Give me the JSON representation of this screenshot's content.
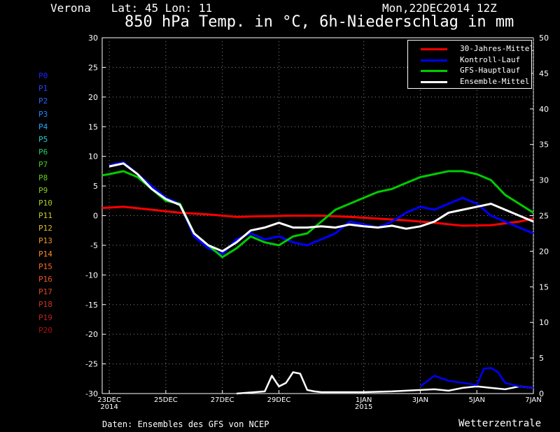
{
  "header": {
    "location": "Verona   Lat: 45 Lon: 11",
    "datetime": "Mon,22DEC2014 12Z",
    "title": "850 hPa Temp. in °C, 6h-Niederschlag in mm"
  },
  "footer": {
    "credit": "Daten: Ensembles des GFS von NCEP",
    "brand": "Wetterzentrale"
  },
  "members": [
    {
      "label": "P0",
      "color": "#2222ff"
    },
    {
      "label": "P1",
      "color": "#2244ff"
    },
    {
      "label": "P2",
      "color": "#2266ff"
    },
    {
      "label": "P3",
      "color": "#2288ff"
    },
    {
      "label": "P4",
      "color": "#22aaff"
    },
    {
      "label": "P5",
      "color": "#22cccc"
    },
    {
      "label": "P6",
      "color": "#22cc66"
    },
    {
      "label": "P7",
      "color": "#44cc22"
    },
    {
      "label": "P8",
      "color": "#66cc22"
    },
    {
      "label": "P9",
      "color": "#88cc22"
    },
    {
      "label": "P10",
      "color": "#aacc22"
    },
    {
      "label": "P11",
      "color": "#cccc22"
    },
    {
      "label": "P12",
      "color": "#ddbb22"
    },
    {
      "label": "P13",
      "color": "#ee9922"
    },
    {
      "label": "P14",
      "color": "#ff8822"
    },
    {
      "label": "P15",
      "color": "#ff6622"
    },
    {
      "label": "P16",
      "color": "#ee5522"
    },
    {
      "label": "P17",
      "color": "#dd4422"
    },
    {
      "label": "P18",
      "color": "#cc3322"
    },
    {
      "label": "P19",
      "color": "#bb2222"
    },
    {
      "label": "P20",
      "color": "#aa1111"
    }
  ],
  "legend": [
    {
      "label": "30-Jahres-Mittel",
      "color": "#ff0000"
    },
    {
      "label": "Kontroll-Lauf",
      "color": "#0000ff"
    },
    {
      "label": "GFS-Hauptlauf",
      "color": "#00cc00"
    },
    {
      "label": "Ensemble-Mittel",
      "color": "#ffffff"
    }
  ],
  "chart_data": {
    "type": "line",
    "title": "850 hPa Temp. in °C, 6h-Niederschlag in mm",
    "x_tick_labels": [
      {
        "label": "23DEC",
        "day": 1
      },
      {
        "label": "2014",
        "day": 1
      },
      {
        "label": "25DEC",
        "day": 3
      },
      {
        "label": "27DEC",
        "day": 5
      },
      {
        "label": "29DEC",
        "day": 7
      },
      {
        "label": "1JAN",
        "day": 10
      },
      {
        "label": "2015",
        "day": 10
      },
      {
        "label": "3JAN",
        "day": 12
      },
      {
        "label": "5JAN",
        "day": 14
      },
      {
        "label": "7JAN",
        "day": 16
      }
    ],
    "xlim_days": [
      0.75,
      16
    ],
    "y_left": {
      "ylim": [
        -30,
        30
      ],
      "ticks": [
        30,
        25,
        20,
        15,
        10,
        5,
        0,
        -5,
        -10,
        -15,
        -20,
        -25,
        -30
      ]
    },
    "y_right": {
      "ylim": [
        0,
        50
      ],
      "ticks": [
        50,
        45,
        40,
        35,
        30,
        25,
        20,
        15,
        10,
        5,
        0
      ]
    },
    "grid": true,
    "legend_position": "top-right",
    "temperature_series": [
      {
        "name": "30-Jahres-Mittel",
        "color": "#ff0000",
        "x": [
          0.75,
          1.5,
          2.5,
          3.5,
          4.5,
          5.5,
          6.5,
          7.5,
          8.5,
          9.5,
          10.5,
          11.5,
          12.5,
          13.5,
          14.5,
          15.5,
          16
        ],
        "y": [
          1.3,
          1.5,
          1.0,
          0.5,
          0.2,
          -0.2,
          -0.1,
          0.0,
          0.0,
          -0.2,
          -0.5,
          -0.8,
          -1.2,
          -1.7,
          -1.6,
          -1.0,
          -0.5
        ]
      },
      {
        "name": "Kontroll-Lauf",
        "color": "#0000ff",
        "x": [
          1,
          1.5,
          2,
          2.5,
          3,
          3.5,
          4,
          4.5,
          5,
          5.5,
          6,
          6.5,
          7,
          7.5,
          8,
          8.5,
          9,
          9.5,
          10,
          10.5,
          11,
          11.5,
          12,
          12.5,
          13,
          13.5,
          14,
          14.5,
          15,
          15.5,
          16
        ],
        "y": [
          8.5,
          9.0,
          7.0,
          5.0,
          3.0,
          2.0,
          -3.5,
          -5.5,
          -6.5,
          -4.0,
          -3.0,
          -4.0,
          -3.5,
          -4.5,
          -5.0,
          -4.0,
          -3.0,
          -1.0,
          -1.5,
          -2.0,
          -1.0,
          0.5,
          1.5,
          1.0,
          2.0,
          3.0,
          2.0,
          0.0,
          -1.0,
          -2.0,
          -3.0
        ]
      },
      {
        "name": "GFS-Hauptlauf",
        "color": "#00cc00",
        "x": [
          0.75,
          1,
          1.5,
          2,
          2.5,
          3,
          3.5,
          4,
          4.5,
          5,
          5.5,
          6,
          6.5,
          7,
          7.5,
          8,
          8.5,
          9,
          9.5,
          10,
          10.5,
          11,
          11.5,
          12,
          12.5,
          13,
          13.5,
          14,
          14.5,
          15,
          15.5,
          16
        ],
        "y": [
          6.8,
          7.0,
          7.5,
          6.5,
          4.5,
          2.5,
          2.0,
          -3.0,
          -5.0,
          -7.0,
          -5.5,
          -3.5,
          -4.5,
          -5.0,
          -3.5,
          -3.0,
          -1.0,
          1.0,
          2.0,
          3.0,
          4.0,
          4.5,
          5.5,
          6.5,
          7.0,
          7.5,
          7.5,
          7.0,
          6.0,
          3.5,
          2.0,
          0.5
        ]
      },
      {
        "name": "Ensemble-Mittel",
        "color": "#ffffff",
        "x": [
          1,
          1.5,
          2,
          2.5,
          3,
          3.5,
          4,
          4.5,
          5,
          5.5,
          6,
          6.5,
          7,
          7.5,
          8,
          8.5,
          9,
          9.5,
          10,
          10.5,
          11,
          11.5,
          12,
          12.5,
          13,
          13.5,
          14,
          14.5,
          15,
          15.5,
          16
        ],
        "y": [
          8.3,
          8.8,
          7.0,
          4.5,
          2.8,
          1.8,
          -3.0,
          -5.0,
          -6.0,
          -4.5,
          -2.5,
          -2.0,
          -1.2,
          -2.0,
          -2.0,
          -1.8,
          -2.0,
          -1.5,
          -1.8,
          -2.0,
          -1.7,
          -2.2,
          -1.8,
          -1.0,
          0.5,
          1.0,
          1.5,
          2.0,
          1.0,
          0.0,
          -1.0
        ]
      }
    ],
    "precip_series": [
      {
        "name": "Ensemble-Mittel",
        "color": "#ffffff",
        "x": [
          5.5,
          6.5,
          6.75,
          7,
          7.25,
          7.5,
          7.75,
          8,
          8.25,
          8.5,
          9,
          10,
          11,
          12,
          12.5,
          13,
          13.5,
          14,
          14.5,
          15,
          15.5,
          16
        ],
        "y": [
          0.0,
          0.3,
          2.5,
          1.0,
          1.5,
          3.0,
          2.8,
          0.5,
          0.3,
          0.2,
          0.2,
          0.2,
          0.3,
          0.5,
          0.6,
          0.4,
          0.8,
          1.0,
          0.8,
          0.6,
          1.0,
          0.8
        ]
      },
      {
        "name": "Kontroll-Lauf",
        "color": "#0000ff",
        "x": [
          12,
          12.5,
          13,
          13.5,
          14,
          14.25,
          14.5,
          14.75,
          15,
          15.5,
          16
        ],
        "y": [
          1.0,
          2.5,
          1.8,
          1.5,
          1.2,
          3.5,
          3.6,
          3.0,
          1.5,
          1.0,
          0.8
        ]
      }
    ],
    "member_spaghetti_note": ""
  }
}
